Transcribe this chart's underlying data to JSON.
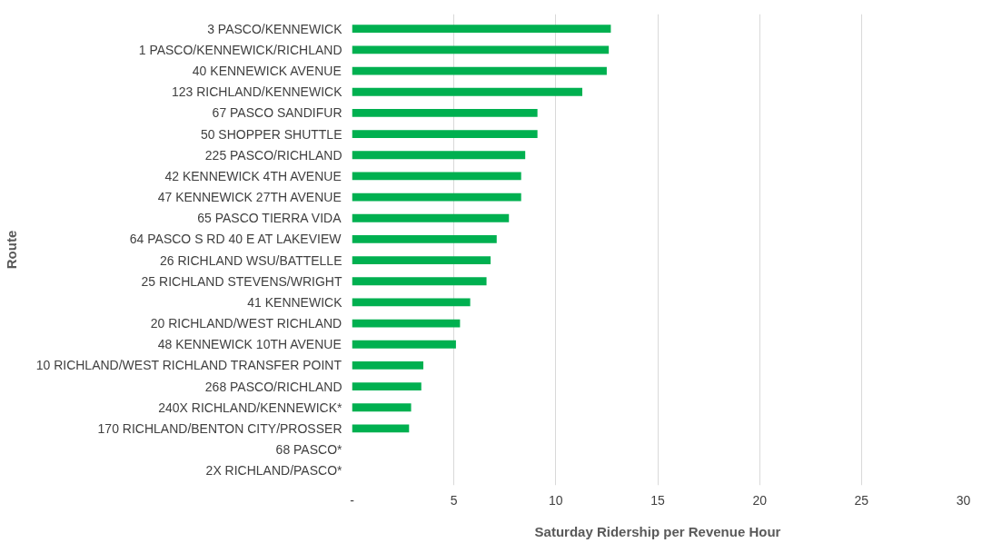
{
  "chart_data": {
    "type": "bar",
    "orientation": "horizontal",
    "xlabel": "Saturday Ridership per Revenue Hour",
    "ylabel": "Route",
    "categories": [
      "3 PASCO/KENNEWICK",
      "1 PASCO/KENNEWICK/RICHLAND",
      "40 KENNEWICK AVENUE",
      "123 RICHLAND/KENNEWICK",
      "67 PASCO SANDIFUR",
      "50 SHOPPER SHUTTLE",
      "225 PASCO/RICHLAND",
      "42 KENNEWICK 4TH AVENUE",
      "47 KENNEWICK 27TH AVENUE",
      "65 PASCO TIERRA VIDA",
      "64 PASCO S RD 40 E AT LAKEVIEW",
      "26 RICHLAND WSU/BATTELLE",
      "25 RICHLAND STEVENS/WRIGHT",
      "41 KENNEWICK",
      "20 RICHLAND/WEST RICHLAND",
      "48 KENNEWICK 10TH AVENUE",
      "10 RICHLAND/WEST RICHLAND TRANSFER POINT",
      "268 PASCO/RICHLAND",
      "240X RICHLAND/KENNEWICK*",
      "170 RICHLAND/BENTON CITY/PROSSER",
      "68 PASCO*",
      "2X RICHLAND/PASCO*"
    ],
    "values": [
      12.7,
      12.6,
      12.5,
      11.3,
      9.1,
      9.1,
      8.5,
      8.3,
      8.3,
      7.7,
      7.1,
      6.8,
      6.6,
      5.8,
      5.3,
      5.1,
      3.5,
      3.4,
      2.9,
      2.8,
      null,
      null
    ],
    "color": "#00b050",
    "xlim": [
      0,
      30
    ],
    "xticks": [
      {
        "value": 0,
        "label": "-"
      },
      5,
      10,
      15,
      20,
      25,
      30
    ],
    "grid": "x"
  }
}
